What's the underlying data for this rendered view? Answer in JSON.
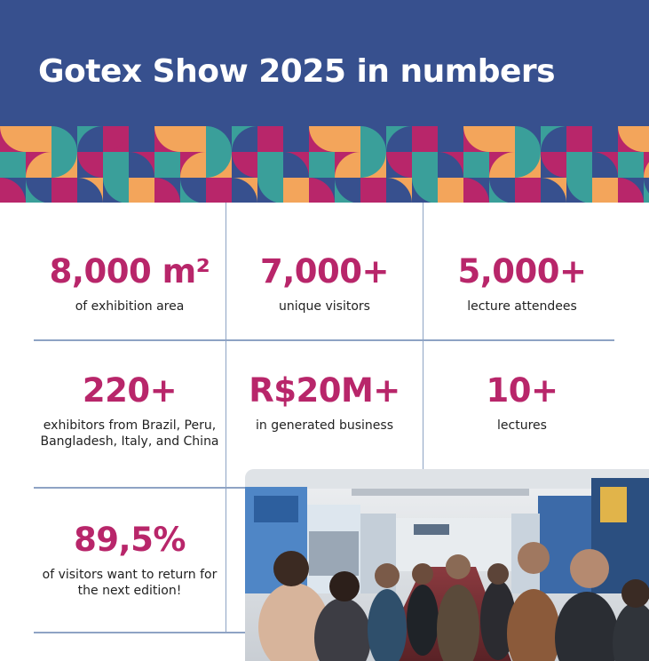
{
  "header": {
    "title": "Gotex Show 2025 in numbers"
  },
  "stats": [
    {
      "value": "8,000 m²",
      "label": "of exhibition area"
    },
    {
      "value": "7,000+",
      "label": "unique visitors"
    },
    {
      "value": "5,000+",
      "label": "lecture attendees"
    },
    {
      "value": "220+",
      "label": "exhibitors from Brazil, Peru, Bangladesh, Italy, and China"
    },
    {
      "value": "R$20M+",
      "label": "in generated business"
    },
    {
      "value": "10+",
      "label": "lectures"
    },
    {
      "value": "89,5%",
      "label": "of visitors want to return for the next edition!"
    }
  ],
  "colors": {
    "header_bg": "#37508e",
    "accent_magenta": "#b8266a",
    "pattern_orange": "#f3a55b",
    "pattern_teal": "#3a9f9a",
    "pattern_navy": "#37508e",
    "grid_line": "#8ea3c4"
  },
  "photo": {
    "icon": "exhibition-hall-photo"
  }
}
